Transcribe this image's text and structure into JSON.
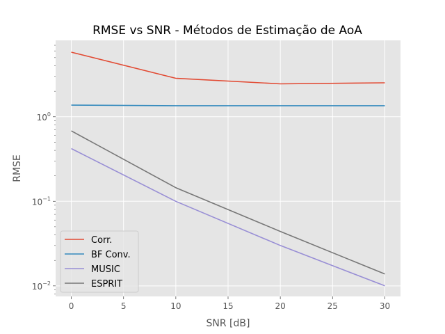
{
  "chart_data": {
    "type": "line",
    "title": "RMSE vs SNR - Métodos de Estimação de AoA",
    "xlabel": "SNR [dB]",
    "ylabel": "RMSE",
    "yscale": "log",
    "xlim": [
      -1.5,
      31.5
    ],
    "ylim": [
      0.0075,
      8.0
    ],
    "x_ticks": [
      0,
      5,
      10,
      15,
      20,
      25,
      30
    ],
    "x_tick_labels": [
      "0",
      "5",
      "10",
      "15",
      "20",
      "25",
      "30"
    ],
    "y_ticks": [
      0.01,
      0.1,
      1
    ],
    "y_tick_labels": [
      {
        "base": "10",
        "exp": "−2"
      },
      {
        "base": "10",
        "exp": "−1"
      },
      {
        "base": "10",
        "exp": "0"
      }
    ],
    "grid": true,
    "legend_position": "lower left",
    "x": [
      0,
      10,
      20,
      30
    ],
    "series": [
      {
        "name": "Corr.",
        "color": "#e24a33",
        "values": [
          5.8,
          2.85,
          2.45,
          2.52
        ]
      },
      {
        "name": "BF Conv.",
        "color": "#348abd",
        "values": [
          1.37,
          1.35,
          1.35,
          1.35
        ]
      },
      {
        "name": "MUSIC",
        "color": "#988ed5",
        "values": [
          0.42,
          0.1,
          0.03,
          0.01
        ]
      },
      {
        "name": "ESPRIT",
        "color": "#777777",
        "values": [
          0.68,
          0.145,
          0.044,
          0.0138
        ]
      }
    ]
  }
}
